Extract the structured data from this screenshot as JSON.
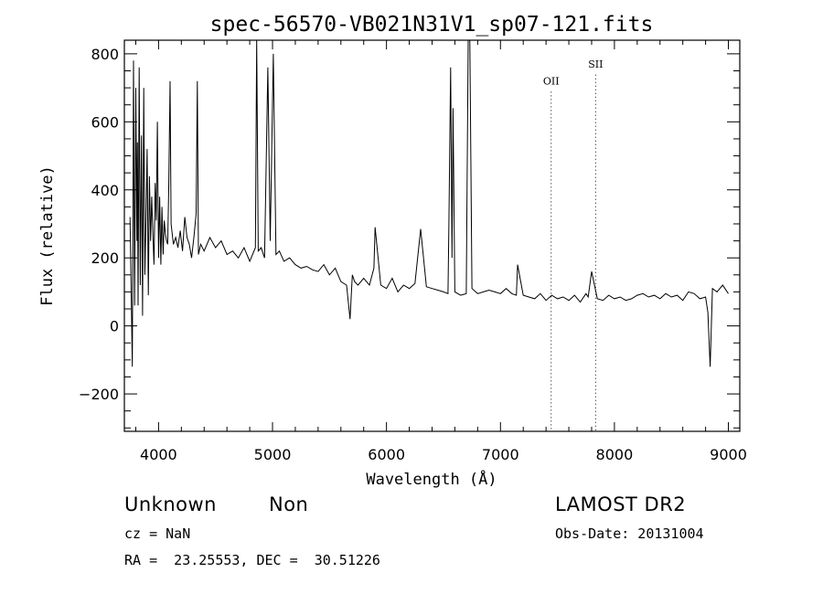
{
  "chart_data": {
    "type": "line",
    "title": "spec-56570-VB021N31V1_sp07-121.fits",
    "xlabel": "Wavelength (Å)",
    "ylabel": "Flux (relative)",
    "xlim": [
      3700,
      9100
    ],
    "ylim": [
      -310,
      840
    ],
    "x_ticks": [
      4000,
      5000,
      6000,
      7000,
      8000,
      9000
    ],
    "x_tick_labels": [
      "4000",
      "5000",
      "6000",
      "7000",
      "8000",
      "9000"
    ],
    "y_ticks": [
      -200,
      0,
      200,
      400,
      600,
      800
    ],
    "y_tick_labels": [
      "−200",
      "0",
      "200",
      "400",
      "600",
      "800"
    ],
    "line_markers": [
      {
        "label": "OII",
        "wavelength": 7445,
        "label_y": 710
      },
      {
        "label": "SII",
        "wavelength": 7835,
        "label_y": 760
      }
    ],
    "series": [
      {
        "name": "spectrum",
        "x": [
          3750,
          3770,
          3780,
          3790,
          3800,
          3810,
          3815,
          3820,
          3830,
          3840,
          3850,
          3860,
          3870,
          3880,
          3890,
          3900,
          3910,
          3920,
          3930,
          3940,
          3950,
          3960,
          3970,
          3980,
          3990,
          4000,
          4010,
          4020,
          4030,
          4040,
          4050,
          4060,
          4070,
          4080,
          4090,
          4101,
          4110,
          4130,
          4150,
          4170,
          4190,
          4210,
          4230,
          4250,
          4270,
          4290,
          4310,
          4330,
          4340,
          4350,
          4370,
          4400,
          4450,
          4500,
          4550,
          4600,
          4650,
          4700,
          4750,
          4800,
          4850,
          4861,
          4875,
          4900,
          4930,
          4959,
          4980,
          5007,
          5030,
          5060,
          5100,
          5150,
          5200,
          5250,
          5300,
          5350,
          5400,
          5450,
          5500,
          5550,
          5600,
          5650,
          5680,
          5700,
          5720,
          5750,
          5800,
          5850,
          5890,
          5900,
          5950,
          6000,
          6050,
          6100,
          6150,
          6200,
          6250,
          6300,
          6350,
          6400,
          6450,
          6500,
          6540,
          6548,
          6563,
          6575,
          6584,
          6600,
          6650,
          6700,
          6717,
          6731,
          6750,
          6800,
          6850,
          6900,
          6950,
          7000,
          7050,
          7100,
          7140,
          7150,
          7200,
          7250,
          7300,
          7350,
          7400,
          7450,
          7500,
          7550,
          7600,
          7650,
          7700,
          7750,
          7770,
          7800,
          7850,
          7900,
          7950,
          8000,
          8050,
          8100,
          8150,
          8200,
          8250,
          8300,
          8350,
          8400,
          8450,
          8500,
          8550,
          8600,
          8650,
          8700,
          8750,
          8800,
          8820,
          8840,
          8860,
          8900,
          8950,
          9000
        ],
        "values": [
          320,
          -120,
          780,
          60,
          700,
          250,
          540,
          60,
          760,
          120,
          560,
          30,
          700,
          150,
          320,
          520,
          90,
          440,
          250,
          380,
          270,
          180,
          420,
          310,
          600,
          200,
          380,
          180,
          350,
          210,
          310,
          270,
          250,
          240,
          420,
          720,
          300,
          240,
          260,
          230,
          280,
          220,
          320,
          260,
          240,
          200,
          260,
          330,
          720,
          210,
          240,
          220,
          260,
          230,
          250,
          210,
          220,
          200,
          230,
          190,
          230,
          840,
          220,
          230,
          200,
          760,
          250,
          800,
          210,
          220,
          190,
          200,
          180,
          170,
          175,
          165,
          160,
          180,
          150,
          170,
          130,
          120,
          20,
          150,
          130,
          120,
          140,
          120,
          170,
          290,
          120,
          110,
          140,
          100,
          120,
          110,
          125,
          285,
          115,
          110,
          105,
          100,
          95,
          300,
          760,
          200,
          640,
          100,
          90,
          95,
          850,
          850,
          110,
          95,
          100,
          105,
          100,
          95,
          110,
          95,
          90,
          180,
          90,
          85,
          80,
          95,
          75,
          90,
          80,
          85,
          75,
          90,
          70,
          95,
          85,
          160,
          80,
          75,
          90,
          80,
          85,
          75,
          80,
          90,
          95,
          85,
          90,
          80,
          95,
          85,
          90,
          75,
          100,
          95,
          80,
          85,
          40,
          -120,
          110,
          100,
          120,
          95
        ]
      }
    ]
  },
  "info": {
    "object_class": "Unknown",
    "object_subclass": "Non",
    "survey": "LAMOST DR2",
    "cz_line": "cz = NaN",
    "obs_date_line": "Obs-Date: 20131004",
    "coords_line": "RA =  23.25553, DEC =  30.51226"
  }
}
